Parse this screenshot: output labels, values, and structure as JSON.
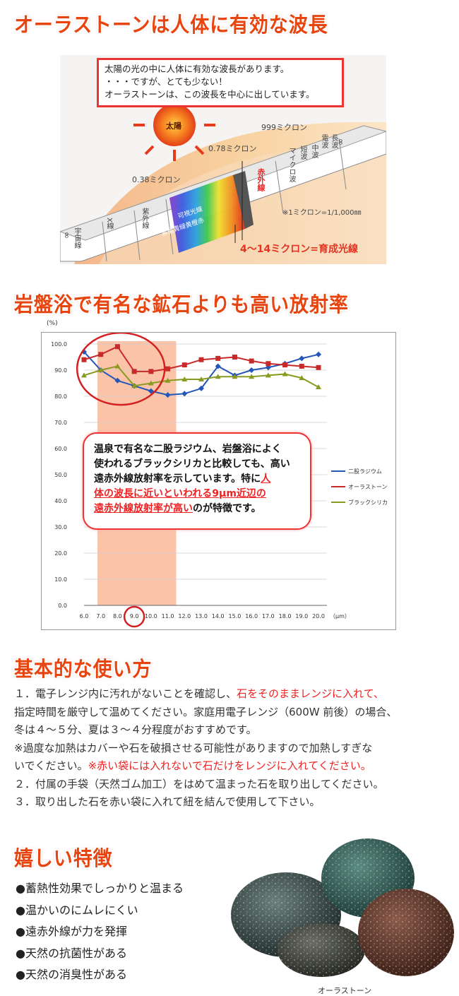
{
  "headings": {
    "h1": "オーラストーンは人体に有効な波長",
    "h2": "岩盤浴で有名な鉱石よりも高い放射率",
    "h3": "基本的な使い方",
    "h4": "嬉しい特徴"
  },
  "spectrum": {
    "box_lines": [
      "太陽の光の中に人体に有効な波長があります。",
      "・・・ですが、とても少ない！",
      "オーラストーンは、この波長を中心に出しています。"
    ],
    "sun": "太陽",
    "marks": [
      "0.38ミクロン",
      "0.78ミクロン",
      "999ミクロン"
    ],
    "note": "※1ミクロン=1/1,000㎜",
    "bands": [
      "∞",
      "宇宙線",
      "X線",
      "紫外線",
      "紫藍青緑黄橙赤",
      "可視光線",
      "赤外線",
      "マイクロ波",
      "短波",
      "中波",
      "電波",
      "長波",
      "∞"
    ],
    "highlight": "4〜14ミクロン=育成光線"
  },
  "chart_data": {
    "type": "line",
    "x": [
      6.0,
      7.0,
      8.0,
      9.0,
      10.0,
      11.0,
      12.0,
      13.0,
      14.0,
      15.0,
      16.0,
      17.0,
      18.0,
      19.0,
      20.0
    ],
    "x_ticks": [
      "6.0",
      "7.0",
      "8.0",
      "9.0",
      "10.0",
      "11.0",
      "12.0",
      "13.0",
      "14.0",
      "15.0",
      "16.0",
      "17.0",
      "18.0",
      "19.0",
      "20.0"
    ],
    "y_ticks": [
      "0.0",
      "10.0",
      "20.0",
      "30.0",
      "40.0",
      "50.0",
      "60.0",
      "70.0",
      "80.0",
      "90.0",
      "100.0"
    ],
    "ylim": [
      0,
      100
    ],
    "xlabel": "（μm）",
    "ylabel": "(%)",
    "highlight_range": [
      6.8,
      11.5
    ],
    "series": [
      {
        "name": "二股ラジウム",
        "color": "#2456b8",
        "marker": "diamond",
        "values": [
          97,
          90,
          86,
          84,
          82,
          80.5,
          81,
          83,
          91.5,
          88,
          90,
          91,
          92.5,
          94.5,
          96
        ]
      },
      {
        "name": "オーラストーン",
        "color": "#c82a2a",
        "marker": "square",
        "values": [
          94,
          96,
          99,
          89.5,
          89.5,
          90.5,
          92,
          94,
          94.5,
          95,
          93.5,
          92.5,
          92,
          91.5,
          91
        ]
      },
      {
        "name": "ブラックシリカ",
        "color": "#8a9a20",
        "marker": "triangle",
        "values": [
          88,
          90,
          91.5,
          84,
          85,
          86,
          86.5,
          86.5,
          87.5,
          87.5,
          87.5,
          88,
          88.5,
          87,
          83.5
        ]
      }
    ]
  },
  "callout": {
    "line1": "温泉で有名な二股ラジウム、岩盤浴によく",
    "line2": "使われるブラックシリカと比較しても、高い",
    "line3a": "遠赤外線放射率を示しています。特に",
    "line3b": "人",
    "line4": "体の波長に近いといわれる9μm近辺の",
    "line5a": "遠赤外線放射率が高い",
    "line5b": "のが特徴です。"
  },
  "usage": {
    "p1a": "１．電子レンジ内に汚れがないことを確認し、",
    "p1b": "石をそのままレンジに入れて、",
    "p1c": "指定時間を厳守して温めてください。家庭用電子レンジ（600W 前後）の場合、",
    "p1d": "冬は４～５分、夏は３～４分程度がおすすめです。",
    "p2a": "※過度な加熱はカバーや石を破損させる可能性がありますので加熱しすぎな",
    "p2b": "いでください。",
    "p2c": "※赤い袋には入れないで石だけをレンジに入れてください。",
    "p3": "２．付属の手袋（天然ゴム加工）をはめて温まった石を取り出してください。",
    "p4": "３．取り出した石を赤い袋に入れて紐を結んで使用して下さい。"
  },
  "features": [
    "●蓄熱性効果でしっかりと温まる",
    "●温かいのにムレにくい",
    "●遠赤外線が力を発揮",
    "●天然の抗菌性がある",
    "●天然の消臭性がある"
  ],
  "stone_caption": "オーラストーン"
}
